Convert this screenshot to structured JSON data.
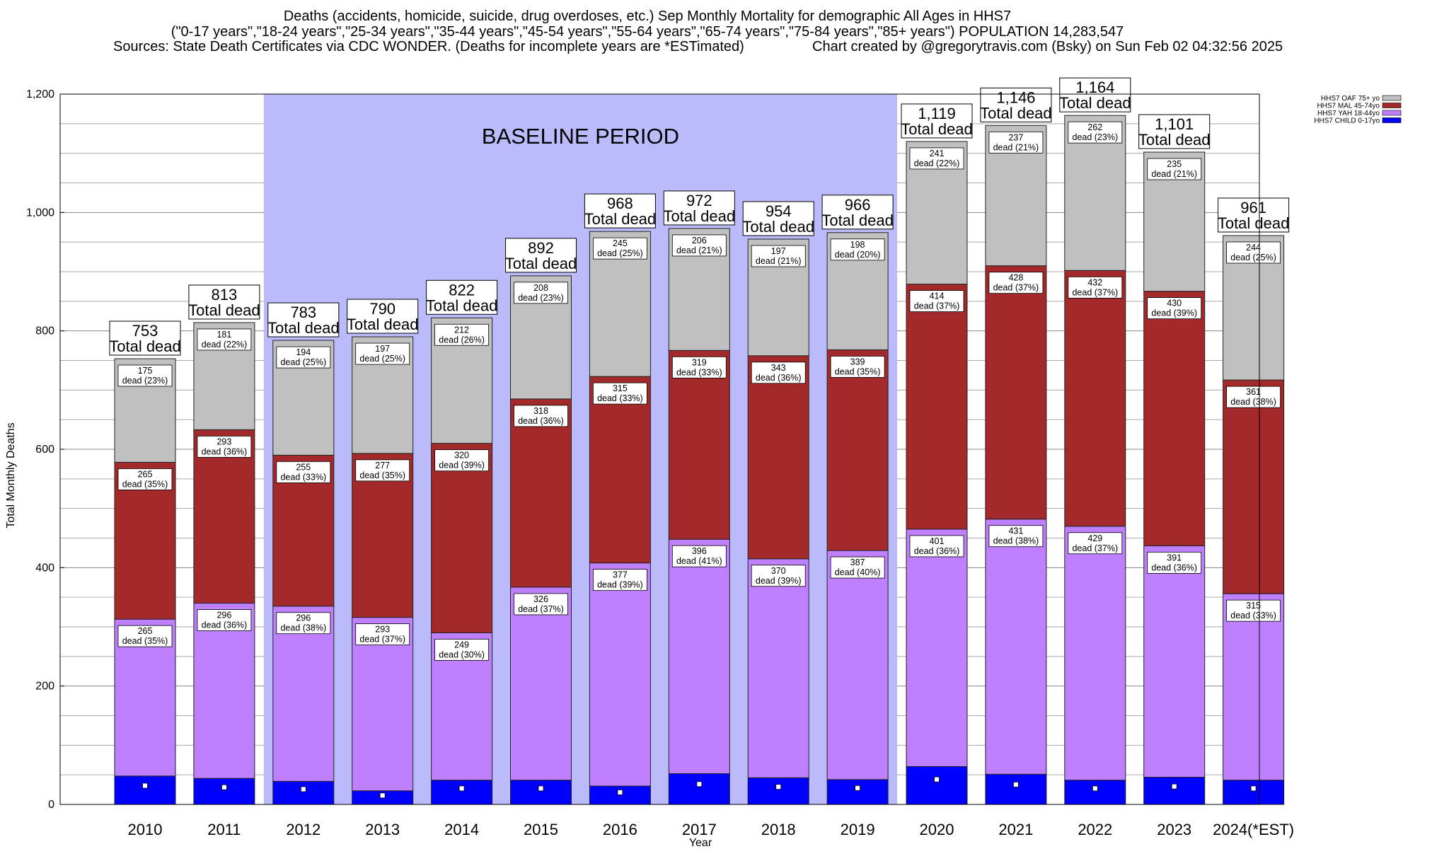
{
  "titles": {
    "line1": "Deaths (accidents, homicide, suicide, drug overdoses, etc.) Sep Monthly Mortality for demographic All Ages in HHS7",
    "line2": "(\"0-17 years\",\"18-24 years\",\"25-34 years\",\"35-44 years\",\"45-54 years\",\"55-64 years\",\"65-74 years\",\"75-84 years\",\"85+ years\") POPULATION 14,283,547",
    "line3_left": "Sources: State Death Certificates via CDC WONDER. (Deaths for incomplete years are *ESTimated)",
    "line3_right": "Chart created by @gregorytravis.com (Bsky) on Sun Feb 02 04:32:56 2025"
  },
  "baseline_label": "BASELINE PERIOD",
  "total_suffix": "Total dead",
  "seg_prefix": "dead",
  "colors": {
    "baseline_shade": "#bbbbfb",
    "oaf": "#c0c0c0",
    "mal": "#a4292b",
    "yah": "#bf80ff",
    "child": "#0000ff",
    "grid": "#aaaaaa"
  },
  "chart_data": {
    "type": "bar",
    "stacked": true,
    "xlabel": "Year",
    "ylabel": "Total Monthly Deaths",
    "ylim": [
      0,
      1200
    ],
    "yticks": [
      "0",
      "200",
      "400",
      "600",
      "800",
      "1,000",
      "1,200"
    ],
    "grid": true,
    "legend_position": "top-right",
    "categories": [
      "2010",
      "2011",
      "2012",
      "2013",
      "2014",
      "2015",
      "2016",
      "2017",
      "2018",
      "2019",
      "2020",
      "2021",
      "2022",
      "2023",
      "2024(*EST)"
    ],
    "baseline_period": [
      "2012",
      "2019"
    ],
    "series": [
      {
        "name": "HHS7 CHILD 0-17yo",
        "key": "child",
        "values": [
          48,
          44,
          39,
          23,
          41,
          41,
          31,
          52,
          45,
          42,
          64,
          51,
          41,
          46,
          41
        ],
        "labels": null
      },
      {
        "name": "HHS7 YAH 18-44yo",
        "key": "yah",
        "values": [
          265,
          296,
          296,
          293,
          249,
          326,
          377,
          396,
          370,
          387,
          401,
          431,
          429,
          391,
          315
        ],
        "labels": [
          "265",
          "296",
          "296",
          "293",
          "249",
          "326",
          "377",
          "396",
          "370",
          "387",
          "401",
          "431",
          "429",
          "391",
          "315"
        ],
        "pcts": [
          "(35%)",
          "(36%)",
          "(38%)",
          "(37%)",
          "(30%)",
          "(37%)",
          "(39%)",
          "(41%)",
          "(39%)",
          "(40%)",
          "(36%)",
          "(38%)",
          "(37%)",
          "(36%)",
          "(33%)"
        ]
      },
      {
        "name": "HHS7 MAL 45-74yo",
        "key": "mal",
        "values": [
          265,
          293,
          255,
          277,
          320,
          318,
          315,
          319,
          343,
          339,
          414,
          428,
          432,
          430,
          361
        ],
        "labels": [
          "265",
          "293",
          "255",
          "277",
          "320",
          "318",
          "315",
          "319",
          "343",
          "339",
          "414",
          "428",
          "432",
          "430",
          "361"
        ],
        "pcts": [
          "(35%)",
          "(36%)",
          "(33%)",
          "(35%)",
          "(39%)",
          "(36%)",
          "(33%)",
          "(33%)",
          "(36%)",
          "(35%)",
          "(37%)",
          "(37%)",
          "(37%)",
          "(39%)",
          "(38%)"
        ]
      },
      {
        "name": "HHS7 OAF 75+ yo",
        "key": "oaf",
        "values": [
          175,
          181,
          194,
          197,
          212,
          208,
          245,
          206,
          197,
          198,
          241,
          237,
          262,
          235,
          244
        ],
        "labels": [
          "175",
          "181",
          "194",
          "197",
          "212",
          "208",
          "245",
          "206",
          "197",
          "198",
          "241",
          "237",
          "262",
          "235",
          "244"
        ],
        "pcts": [
          "(23%)",
          "(22%)",
          "(25%)",
          "(25%)",
          "(26%)",
          "(23%)",
          "(25%)",
          "(21%)",
          "(21%)",
          "(20%)",
          "(22%)",
          "(21%)",
          "(23%)",
          "(21%)",
          "(25%)"
        ]
      }
    ],
    "totals": [
      "753",
      "813",
      "783",
      "790",
      "822",
      "892",
      "968",
      "972",
      "954",
      "966",
      "1,119",
      "1,146",
      "1,164",
      "1,101",
      "961"
    ],
    "legend": [
      "HHS7 OAF 75+ yo",
      "HHS7 MAL 45-74yo",
      "HHS7 YAH 18-44yo",
      "HHS7 CHILD 0-17yo"
    ]
  }
}
